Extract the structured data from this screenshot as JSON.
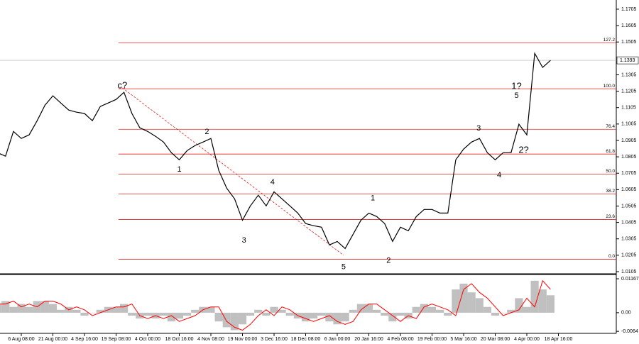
{
  "chart_data": [
    {
      "type": "line",
      "name": "price",
      "categories": [
        null,
        null,
        null,
        "6 Aug 08:00",
        null,
        null,
        null,
        "21 Aug 00:00",
        null,
        null,
        null,
        "4 Sep 16:00",
        null,
        null,
        null,
        "19 Sep 08:00",
        null,
        null,
        null,
        "4 Oct 00:00",
        null,
        null,
        null,
        "18 Oct 16:00",
        null,
        null,
        null,
        "4 Nov 08:00",
        null,
        null,
        null,
        "19 Nov 00:00",
        null,
        null,
        null,
        "3 Dec 16:00",
        null,
        null,
        null,
        "18 Dec 08:00",
        null,
        null,
        null,
        "6 Jan 00:00",
        null,
        null,
        null,
        "20 Jan 16:00",
        null,
        null,
        null,
        "4 Feb 08:00",
        null,
        null,
        null,
        "19 Feb 00:00",
        null,
        null,
        null,
        "5 Mar 16:00",
        null,
        null,
        null,
        "20 Mar 08:00",
        null,
        null,
        null,
        "4 Apr 00:00",
        null,
        null,
        null,
        "18 Apr 16:00"
      ],
      "values": [
        1.083,
        1.0809,
        1.096,
        1.0917,
        1.0939,
        1.1025,
        1.112,
        1.1177,
        1.1133,
        1.109,
        1.1077,
        1.1069,
        1.1025,
        1.1112,
        1.1133,
        1.1155,
        1.1198,
        1.1069,
        1.0982,
        1.096,
        1.093,
        1.0895,
        1.083,
        1.0787,
        1.0843,
        1.0874,
        1.0895,
        1.0917,
        1.0722,
        1.0614,
        1.0549,
        1.0419,
        1.0506,
        1.0571,
        1.0506,
        1.0592,
        1.0549,
        1.0506,
        1.0462,
        1.0398,
        1.0385,
        1.0376,
        1.0268,
        1.0289,
        1.0246,
        1.0333,
        1.0419,
        1.0462,
        1.0441,
        1.0398,
        1.0289,
        1.0376,
        1.0354,
        1.0441,
        1.0484,
        1.0484,
        1.0462,
        1.0462,
        1.0787,
        1.0852,
        1.0895,
        1.0917,
        1.083,
        1.0787,
        1.083,
        1.083,
        1.1004,
        1.0939,
        1.1436,
        1.135,
        1.1393,
        null
      ],
      "color": "#000000",
      "ylim": [
        1.0092,
        1.1761
      ],
      "yticks": [
        1.1705,
        1.1605,
        1.1505,
        1.1305,
        1.1205,
        1.1105,
        1.1005,
        1.0905,
        1.0805,
        1.0705,
        1.0605,
        1.0505,
        1.0405,
        1.0305,
        1.0205,
        1.0105
      ],
      "last_price": {
        "value": 1.1393,
        "label": "1.1393"
      },
      "fib_color": "#e0201b",
      "fib_levels": [
        {
          "label": "127.2",
          "price": 1.1501
        },
        {
          "label": "100.0",
          "price": 1.122
        },
        {
          "label": "76.4",
          "price": 1.0973
        },
        {
          "label": "61.8",
          "price": 1.0822
        },
        {
          "label": "50.0",
          "price": 1.07
        },
        {
          "label": "38.2",
          "price": 1.0579
        },
        {
          "label": "23.6",
          "price": 1.0423
        },
        {
          "label": "0.0",
          "price": 1.0181
        }
      ],
      "trend_line": {
        "x": [
          15.8,
          43.8
        ],
        "y": [
          1.1225,
          1.0205
        ]
      },
      "annotations": [
        {
          "text": "c?",
          "x": 15.8,
          "y": 1.1237,
          "color": "#e0201b"
        },
        {
          "text": "1",
          "x": 23,
          "y": 1.0727,
          "color": "#2b3bd6"
        },
        {
          "text": "2",
          "x": 26.5,
          "y": 1.0956,
          "color": "#2b3bd6"
        },
        {
          "text": "3",
          "x": 31.2,
          "y": 1.0294,
          "color": "#2b3bd6"
        },
        {
          "text": "4",
          "x": 34.8,
          "y": 1.0649,
          "color": "#2b3bd6"
        },
        {
          "text": "5",
          "x": 43.8,
          "y": 1.0133,
          "color": "#2b3bd6"
        },
        {
          "text": "1",
          "x": 47.5,
          "y": 1.0553,
          "color": "#2b3bd6"
        },
        {
          "text": "2",
          "x": 49.5,
          "y": 1.0172,
          "color": "#2b3bd6"
        },
        {
          "text": "3",
          "x": 60.9,
          "y": 1.0978,
          "color": "#2b3bd6"
        },
        {
          "text": "4",
          "x": 63.5,
          "y": 1.0692,
          "color": "#2b3bd6"
        },
        {
          "text": "5",
          "x": 65.7,
          "y": 1.1177,
          "color": "#2b3bd6"
        },
        {
          "text": "1?",
          "x": 65.7,
          "y": 1.1233,
          "color": "#e0201b"
        },
        {
          "text": "2?",
          "x": 66.6,
          "y": 1.0843,
          "color": "#e0201b"
        }
      ]
    },
    {
      "type": "histogram",
      "name": "oscillator",
      "series": [
        {
          "name": "MACD",
          "color": "#c0c0c0",
          "values": [
            0.003,
            0.004,
            0.002,
            0.003,
            0.002,
            0.004,
            0.004,
            0.003,
            0.001,
            0.002,
            0.001,
            -0.001,
            0,
            0.001,
            0.002,
            0.002,
            0.003,
            -0.001,
            -0.002,
            -0.001,
            -0.002,
            -0.001,
            -0.003,
            -0.002,
            -0.001,
            0.001,
            0.002,
            0.002,
            -0.003,
            -0.005,
            -0.006,
            -0.004,
            -0.001,
            0.001,
            -0.001,
            0.002,
            0.001,
            -0.001,
            -0.002,
            -0.003,
            -0.002,
            -0.001,
            -0.003,
            -0.004,
            -0.003,
            0.001,
            0.003,
            0.003,
            0.001,
            -0.001,
            -0.003,
            -0.001,
            -0.002,
            0.002,
            0.003,
            0.002,
            0.001,
            -0.001,
            0.008,
            0.01,
            0.007,
            0.005,
            0.002,
            -0.001,
            0,
            0.001,
            0.005,
            0.002,
            0.011,
            0.008,
            0.006,
            null
          ]
        },
        {
          "name": "Signal",
          "color": "#ff0000",
          "values": [
            0.003,
            0.003,
            0.004,
            0.002,
            0.003,
            0.002,
            0.004,
            0.004,
            0.003,
            0.001,
            0.002,
            0.001,
            -0.001,
            0,
            0.001,
            0.002,
            0.002,
            0.003,
            -0.001,
            -0.002,
            -0.001,
            -0.002,
            -0.001,
            -0.003,
            -0.002,
            -0.001,
            0.001,
            0.002,
            0.002,
            -0.003,
            -0.005,
            -0.006,
            -0.004,
            -0.001,
            0.001,
            -0.001,
            0.002,
            0.001,
            -0.001,
            -0.002,
            -0.003,
            -0.002,
            -0.001,
            -0.003,
            -0.004,
            -0.003,
            0.001,
            0.003,
            0.003,
            0.001,
            -0.001,
            -0.003,
            -0.001,
            -0.002,
            0.002,
            0.003,
            0.002,
            0.001,
            -0.001,
            0.008,
            0.01,
            0.007,
            0.005,
            0.002,
            -0.001,
            0,
            0.001,
            0.005,
            0.002,
            0.011,
            0.008,
            null
          ]
        }
      ],
      "ylim": [
        -0.0071,
        0.0129
      ],
      "yticks": [
        0.01167,
        {
          "value": 0,
          "label": "0.00"
        },
        -0.0064
      ]
    }
  ]
}
